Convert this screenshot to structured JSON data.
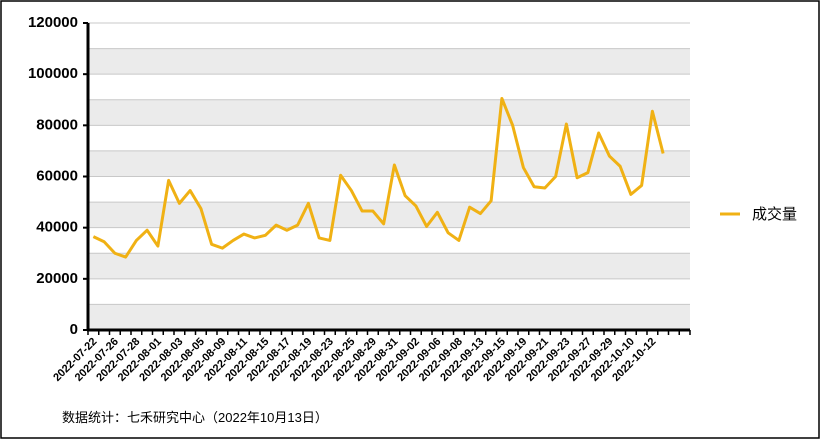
{
  "chart_data": {
    "type": "line",
    "categories": [
      "2022-07-22",
      null,
      "2022-07-26",
      null,
      "2022-07-28",
      null,
      "2022-08-01",
      null,
      "2022-08-03",
      null,
      "2022-08-05",
      null,
      "2022-08-09",
      null,
      "2022-08-11",
      null,
      "2022-08-15",
      null,
      "2022-08-17",
      null,
      "2022-08-19",
      null,
      "2022-08-23",
      null,
      "2022-08-25",
      null,
      "2022-08-29",
      null,
      "2022-08-31",
      null,
      "2022-09-02",
      null,
      "2022-09-06",
      null,
      "2022-09-08",
      null,
      "2022-09-13",
      null,
      "2022-09-15",
      null,
      "2022-09-19",
      null,
      "2022-09-21",
      null,
      "2022-09-23",
      null,
      "2022-09-27",
      null,
      "2022-09-29",
      null,
      "2022-10-10",
      null,
      "2022-10-12",
      null
    ],
    "series": [
      {
        "name": "成交量",
        "color": "#f0b114",
        "values": [
          36500,
          34500,
          30000,
          28500,
          35000,
          39000,
          32800,
          58500,
          49500,
          54500,
          47500,
          33500,
          32000,
          35000,
          37500,
          36000,
          37000,
          41000,
          39000,
          41000,
          49500,
          36000,
          35000,
          60500,
          54500,
          46500,
          46500,
          41500,
          64500,
          52500,
          48500,
          40500,
          46000,
          38000,
          35000,
          48000,
          45500,
          50500,
          90500,
          80000,
          63500,
          56000,
          55500,
          60000,
          80500,
          59500,
          61500,
          77000,
          68000,
          64000,
          53000,
          56500,
          85500,
          69000
        ]
      }
    ],
    "ylim": [
      0,
      120000
    ],
    "yticks": [
      0,
      20000,
      40000,
      60000,
      80000,
      100000,
      120000
    ],
    "grid": true,
    "legend": "right",
    "footnote": "数据统计：七禾研究中心（2022年10月13日）"
  }
}
